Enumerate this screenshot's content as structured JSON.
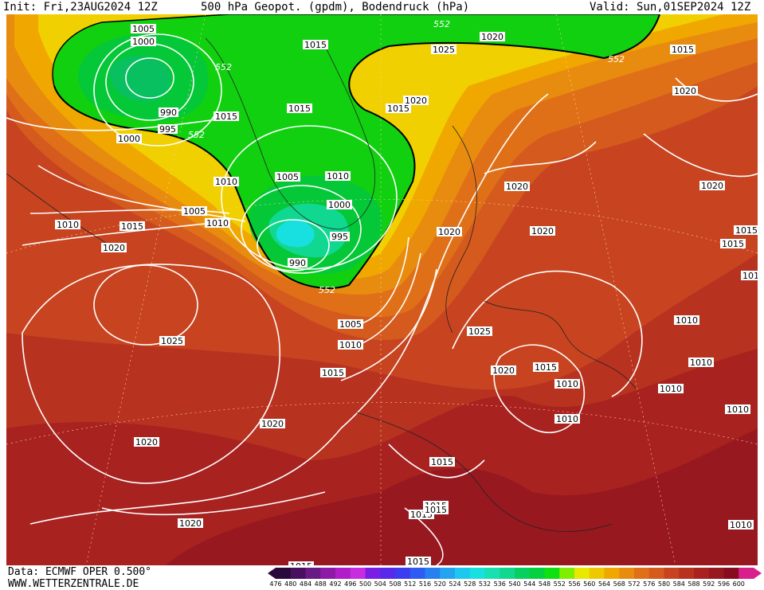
{
  "header": {
    "init": "Init: Fri,23AUG2024 12Z",
    "title": "500 hPa Geopot. (gpdm), Bodendruck (hPa)",
    "valid": "Valid: Sun,01SEP2024 12Z"
  },
  "footer": {
    "data_source": "Data: ECMWF OPER 0.500°",
    "website": "WWW.WETTERZENTRALE.DE"
  },
  "colorbar": {
    "levels": [
      "476",
      "480",
      "484",
      "488",
      "492",
      "496",
      "500",
      "504",
      "508",
      "512",
      "516",
      "520",
      "524",
      "528",
      "532",
      "536",
      "540",
      "544",
      "548",
      "552",
      "556",
      "560",
      "564",
      "568",
      "572",
      "576",
      "580",
      "584",
      "588",
      "592",
      "596",
      "600"
    ],
    "colors": [
      "#2a0a3a",
      "#4a1060",
      "#6a1a84",
      "#8e1aa8",
      "#b01ec8",
      "#c82ce0",
      "#7a1ee6",
      "#5a28e8",
      "#3c3cf0",
      "#2e5cf2",
      "#2880f0",
      "#22a4f0",
      "#1cc8f0",
      "#18e0e0",
      "#18e0b0",
      "#10d890",
      "#08d060",
      "#04d040",
      "#10e010",
      "#80ee00",
      "#e8e800",
      "#f0c800",
      "#f0a800",
      "#e88c10",
      "#e07018",
      "#d45a1e",
      "#c84420",
      "#b83220",
      "#a82220",
      "#981820",
      "#880c20",
      "#d8208c"
    ]
  },
  "map": {
    "contour_level_552": "552",
    "isobar_labels": [
      {
        "id": "l1005a",
        "text": "1005"
      },
      {
        "id": "l1000a",
        "text": "1000"
      },
      {
        "id": "l990a",
        "text": "990"
      },
      {
        "id": "l995a",
        "text": "995"
      },
      {
        "id": "l1000b",
        "text": "1000"
      },
      {
        "id": "l1015a",
        "text": "1015"
      },
      {
        "id": "l1015b",
        "text": "1015"
      },
      {
        "id": "l1015c",
        "text": "1015"
      },
      {
        "id": "l1025a",
        "text": "1025"
      },
      {
        "id": "l1020a",
        "text": "1020"
      },
      {
        "id": "l1015d",
        "text": "1015"
      },
      {
        "id": "l1020b",
        "text": "1020"
      },
      {
        "id": "l1015e",
        "text": "1015"
      },
      {
        "id": "l1020c",
        "text": "1020"
      },
      {
        "id": "l1010a",
        "text": "1010"
      },
      {
        "id": "l1005b",
        "text": "1005"
      },
      {
        "id": "l1010b",
        "text": "1010"
      },
      {
        "id": "l1000c",
        "text": "1000"
      },
      {
        "id": "l995b",
        "text": "995"
      },
      {
        "id": "l990b",
        "text": "990"
      },
      {
        "id": "l1005c",
        "text": "1005"
      },
      {
        "id": "l1010c",
        "text": "1010"
      },
      {
        "id": "l1015f",
        "text": "1015"
      },
      {
        "id": "l1010d",
        "text": "1010"
      },
      {
        "id": "l1020d",
        "text": "1020"
      },
      {
        "id": "l1025b",
        "text": "1025"
      },
      {
        "id": "l1005d",
        "text": "1005"
      },
      {
        "id": "l1010e",
        "text": "1010"
      },
      {
        "id": "l1015g",
        "text": "1015"
      },
      {
        "id": "l1020e",
        "text": "1020"
      },
      {
        "id": "l1020f",
        "text": "1020"
      },
      {
        "id": "l1020g",
        "text": "1020"
      },
      {
        "id": "l1020h",
        "text": "1020"
      },
      {
        "id": "l1020i",
        "text": "1020"
      },
      {
        "id": "l1020j",
        "text": "1020"
      },
      {
        "id": "l1025c",
        "text": "1025"
      },
      {
        "id": "l1015h",
        "text": "1015"
      },
      {
        "id": "l1020k",
        "text": "1020"
      },
      {
        "id": "l1010f",
        "text": "1010"
      },
      {
        "id": "l1015i",
        "text": "1015"
      },
      {
        "id": "l1010g",
        "text": "1010"
      },
      {
        "id": "l1010h",
        "text": "1010"
      },
      {
        "id": "l1010i",
        "text": "1010"
      },
      {
        "id": "l1010j",
        "text": "1010"
      },
      {
        "id": "l1010k",
        "text": "1010"
      },
      {
        "id": "l1015j",
        "text": "1015"
      },
      {
        "id": "l1015k",
        "text": "1015"
      },
      {
        "id": "l1015l",
        "text": "1015"
      },
      {
        "id": "l1015m",
        "text": "1015"
      },
      {
        "id": "l1015n",
        "text": "1015"
      },
      {
        "id": "l1010l",
        "text": "1010"
      },
      {
        "id": "l1015o",
        "text": "1015"
      },
      {
        "id": "l1020l",
        "text": "1020"
      },
      {
        "id": "l1010m",
        "text": "1010"
      },
      {
        "id": "l1015p",
        "text": "1015"
      }
    ]
  }
}
